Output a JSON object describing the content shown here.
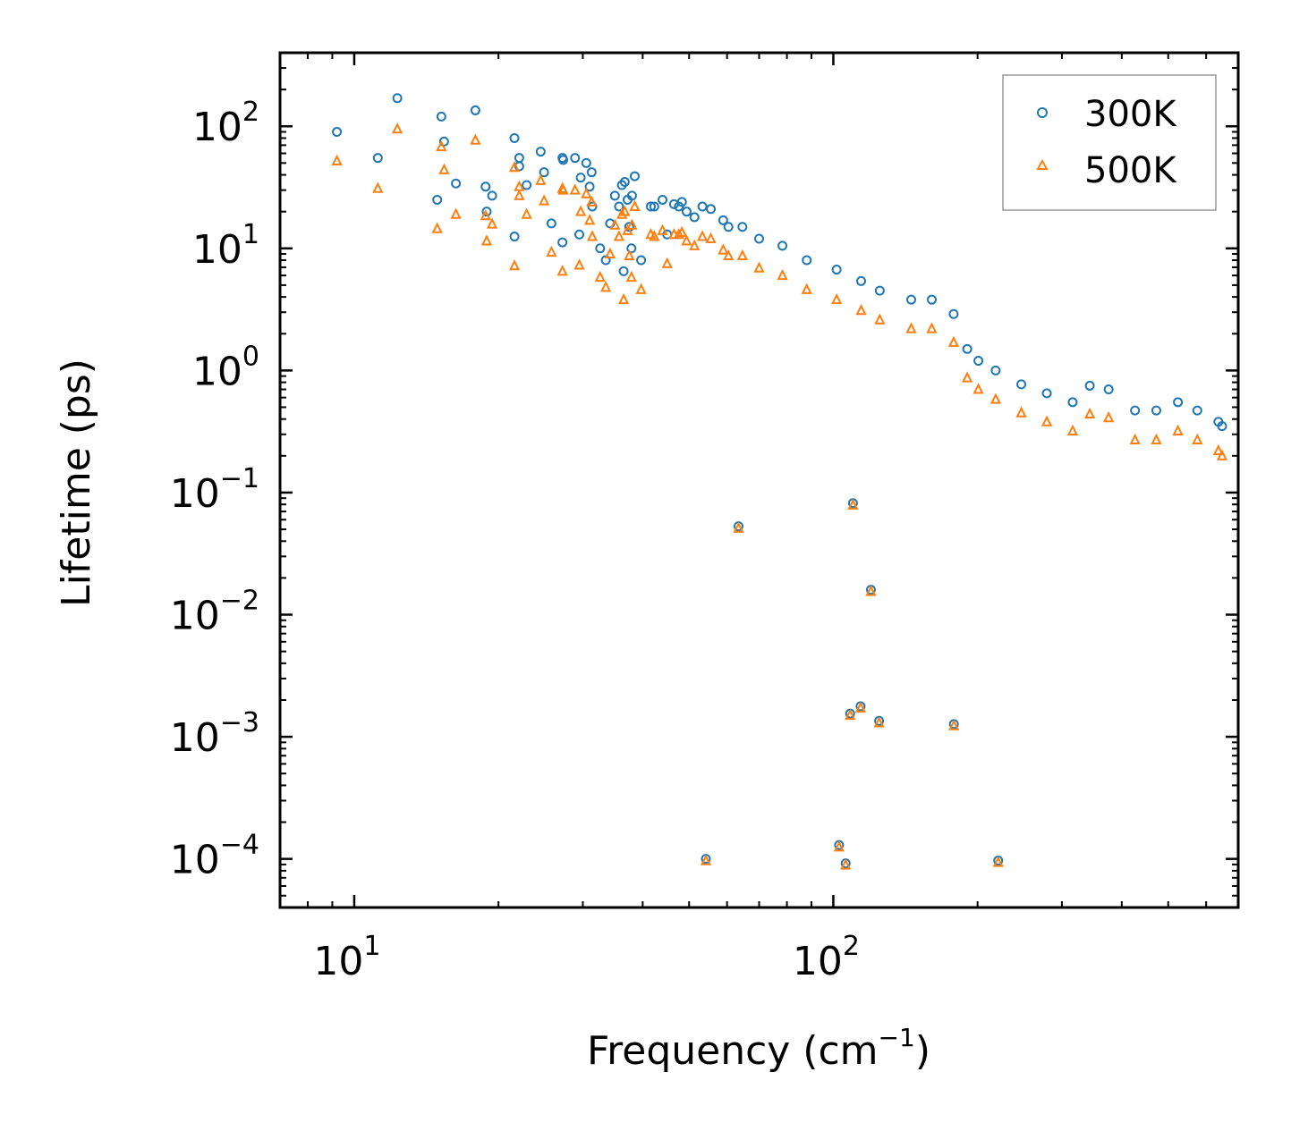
{
  "chart_data": {
    "type": "scatter",
    "x_scale": "log",
    "y_scale": "log",
    "xlim": [
      7,
      700
    ],
    "ylim": [
      4e-05,
      400
    ],
    "xlabel": "Frequency (cm",
    "xlabel_sup": "−1",
    "xlabel_end": ")",
    "ylabel": "Lifetime (ps)",
    "x_ticks": [
      {
        "value": 10,
        "base": "10",
        "exp": "1"
      },
      {
        "value": 100,
        "base": "10",
        "exp": "2"
      }
    ],
    "y_ticks": [
      {
        "value": 100,
        "base": "10",
        "exp": "2"
      },
      {
        "value": 10,
        "base": "10",
        "exp": "1"
      },
      {
        "value": 1,
        "base": "10",
        "exp": "0"
      },
      {
        "value": 0.1,
        "base": "10",
        "exp": "−1"
      },
      {
        "value": 0.01,
        "base": "10",
        "exp": "−2"
      },
      {
        "value": 0.001,
        "base": "10",
        "exp": "−3"
      },
      {
        "value": 0.0001,
        "base": "10",
        "exp": "−4"
      }
    ],
    "legend": {
      "placement": "top-right"
    },
    "series": [
      {
        "name": "300K",
        "marker": "circle",
        "color": "#1f77b4",
        "points": [
          [
            9.2,
            90
          ],
          [
            11.2,
            55
          ],
          [
            12.3,
            170
          ],
          [
            15.2,
            120
          ],
          [
            15.4,
            75
          ],
          [
            14.9,
            25
          ],
          [
            16.3,
            34
          ],
          [
            17.9,
            135
          ],
          [
            18.8,
            32
          ],
          [
            19.4,
            27
          ],
          [
            18.9,
            20
          ],
          [
            21.6,
            80
          ],
          [
            22.1,
            55
          ],
          [
            22.1,
            47
          ],
          [
            21.6,
            12.5
          ],
          [
            22.9,
            33
          ],
          [
            24.5,
            62
          ],
          [
            24.9,
            42
          ],
          [
            25.8,
            16
          ],
          [
            27.2,
            55
          ],
          [
            27.3,
            53
          ],
          [
            27.2,
            11.2
          ],
          [
            28.9,
            55
          ],
          [
            29.7,
            38
          ],
          [
            29.5,
            13
          ],
          [
            30.5,
            50
          ],
          [
            31.3,
            42
          ],
          [
            31.0,
            32
          ],
          [
            31.4,
            22
          ],
          [
            32.6,
            10
          ],
          [
            33.5,
            8
          ],
          [
            34.2,
            16
          ],
          [
            35.0,
            27
          ],
          [
            35.7,
            22
          ],
          [
            36.2,
            33
          ],
          [
            36.7,
            35
          ],
          [
            37.2,
            25
          ],
          [
            38.5,
            39
          ],
          [
            38.0,
            27
          ],
          [
            37.5,
            15
          ],
          [
            36.5,
            6.5
          ],
          [
            37.9,
            10
          ],
          [
            39.7,
            8
          ],
          [
            41.6,
            22
          ],
          [
            42.3,
            22
          ],
          [
            44.0,
            25
          ],
          [
            45.0,
            13
          ],
          [
            46.5,
            23
          ],
          [
            47.6,
            22
          ],
          [
            48.3,
            24
          ],
          [
            49.4,
            20
          ],
          [
            51.3,
            18
          ],
          [
            53.3,
            22
          ],
          [
            55.5,
            21
          ],
          [
            58.9,
            17
          ],
          [
            60.4,
            15
          ],
          [
            64.6,
            15
          ],
          [
            70.0,
            12
          ],
          [
            78.3,
            10.5
          ],
          [
            88.0,
            8
          ],
          [
            101.6,
            6.7
          ],
          [
            114.3,
            5.4
          ],
          [
            125.0,
            4.5
          ],
          [
            145.4,
            3.8
          ],
          [
            160.5,
            3.8
          ],
          [
            178.3,
            2.9
          ],
          [
            190.3,
            1.5
          ],
          [
            200.8,
            1.2
          ],
          [
            218.2,
            1.0
          ],
          [
            246.8,
            0.77
          ],
          [
            279.0,
            0.65
          ],
          [
            315.9,
            0.55
          ],
          [
            343.0,
            0.75
          ],
          [
            375.5,
            0.7
          ],
          [
            426.3,
            0.47
          ],
          [
            472.2,
            0.47
          ],
          [
            523.9,
            0.55
          ],
          [
            575.1,
            0.47
          ],
          [
            636.3,
            0.38
          ],
          [
            647.8,
            0.35
          ],
          [
            63.4,
            0.053
          ],
          [
            109.9,
            0.082
          ],
          [
            119.8,
            0.016
          ],
          [
            108.4,
            0.00155
          ],
          [
            114.0,
            0.00178
          ],
          [
            124.6,
            0.00135
          ],
          [
            178.5,
            0.00127
          ],
          [
            54.2,
            0.0001
          ],
          [
            102.8,
            0.00013
          ],
          [
            106.1,
            9.2e-05
          ],
          [
            220.9,
            9.7e-05
          ]
        ]
      },
      {
        "name": "500K",
        "marker": "triangle",
        "color": "#ff7f0e",
        "points": [
          [
            9.2,
            52
          ],
          [
            11.2,
            31
          ],
          [
            12.3,
            95
          ],
          [
            15.2,
            68
          ],
          [
            15.4,
            44
          ],
          [
            14.9,
            14.5
          ],
          [
            16.3,
            19
          ],
          [
            17.9,
            77
          ],
          [
            18.8,
            18.5
          ],
          [
            19.4,
            15.8
          ],
          [
            18.9,
            11.5
          ],
          [
            21.6,
            46
          ],
          [
            22.1,
            32
          ],
          [
            22.1,
            27
          ],
          [
            21.6,
            7.2
          ],
          [
            22.9,
            19
          ],
          [
            24.5,
            36
          ],
          [
            24.9,
            24.5
          ],
          [
            25.8,
            9.3
          ],
          [
            27.2,
            31
          ],
          [
            27.3,
            30
          ],
          [
            27.2,
            6.5
          ],
          [
            28.9,
            30
          ],
          [
            29.7,
            20
          ],
          [
            29.5,
            7.3
          ],
          [
            30.5,
            28
          ],
          [
            31.3,
            24
          ],
          [
            31.0,
            17
          ],
          [
            31.4,
            12.5
          ],
          [
            32.6,
            5.8
          ],
          [
            33.5,
            4.8
          ],
          [
            34.2,
            9
          ],
          [
            35.0,
            15.5
          ],
          [
            35.7,
            12.5
          ],
          [
            36.2,
            19
          ],
          [
            36.7,
            20
          ],
          [
            37.2,
            14
          ],
          [
            38.5,
            22
          ],
          [
            38.0,
            15.5
          ],
          [
            37.5,
            8.7
          ],
          [
            36.5,
            3.8
          ],
          [
            37.9,
            5.8
          ],
          [
            39.7,
            4.6
          ],
          [
            41.6,
            13
          ],
          [
            42.3,
            12.5
          ],
          [
            44.0,
            14
          ],
          [
            45.0,
            7.5
          ],
          [
            46.5,
            13
          ],
          [
            47.6,
            13
          ],
          [
            48.3,
            13.5
          ],
          [
            49.4,
            11.5
          ],
          [
            51.3,
            10.5
          ],
          [
            53.3,
            12.5
          ],
          [
            55.5,
            12
          ],
          [
            58.9,
            9.7
          ],
          [
            60.4,
            8.7
          ],
          [
            64.6,
            8.7
          ],
          [
            70.0,
            6.9
          ],
          [
            78.3,
            6.0
          ],
          [
            88.0,
            4.6
          ],
          [
            101.6,
            3.8
          ],
          [
            114.3,
            3.1
          ],
          [
            125.0,
            2.6
          ],
          [
            145.4,
            2.2
          ],
          [
            160.5,
            2.2
          ],
          [
            178.3,
            1.7
          ],
          [
            190.3,
            0.87
          ],
          [
            200.8,
            0.7
          ],
          [
            218.2,
            0.58
          ],
          [
            246.8,
            0.45
          ],
          [
            279.0,
            0.38
          ],
          [
            315.9,
            0.32
          ],
          [
            343.0,
            0.44
          ],
          [
            375.5,
            0.41
          ],
          [
            426.3,
            0.27
          ],
          [
            472.2,
            0.27
          ],
          [
            523.9,
            0.32
          ],
          [
            575.1,
            0.27
          ],
          [
            636.3,
            0.22
          ],
          [
            647.8,
            0.2
          ],
          [
            63.4,
            0.051
          ],
          [
            109.9,
            0.079
          ],
          [
            119.8,
            0.0155
          ],
          [
            108.4,
            0.0015
          ],
          [
            114.0,
            0.00172
          ],
          [
            124.6,
            0.0013
          ],
          [
            178.5,
            0.00123
          ],
          [
            54.2,
            9.65e-05
          ],
          [
            102.8,
            0.000125
          ],
          [
            106.1,
            8.9e-05
          ],
          [
            220.9,
            9.35e-05
          ]
        ]
      }
    ]
  }
}
